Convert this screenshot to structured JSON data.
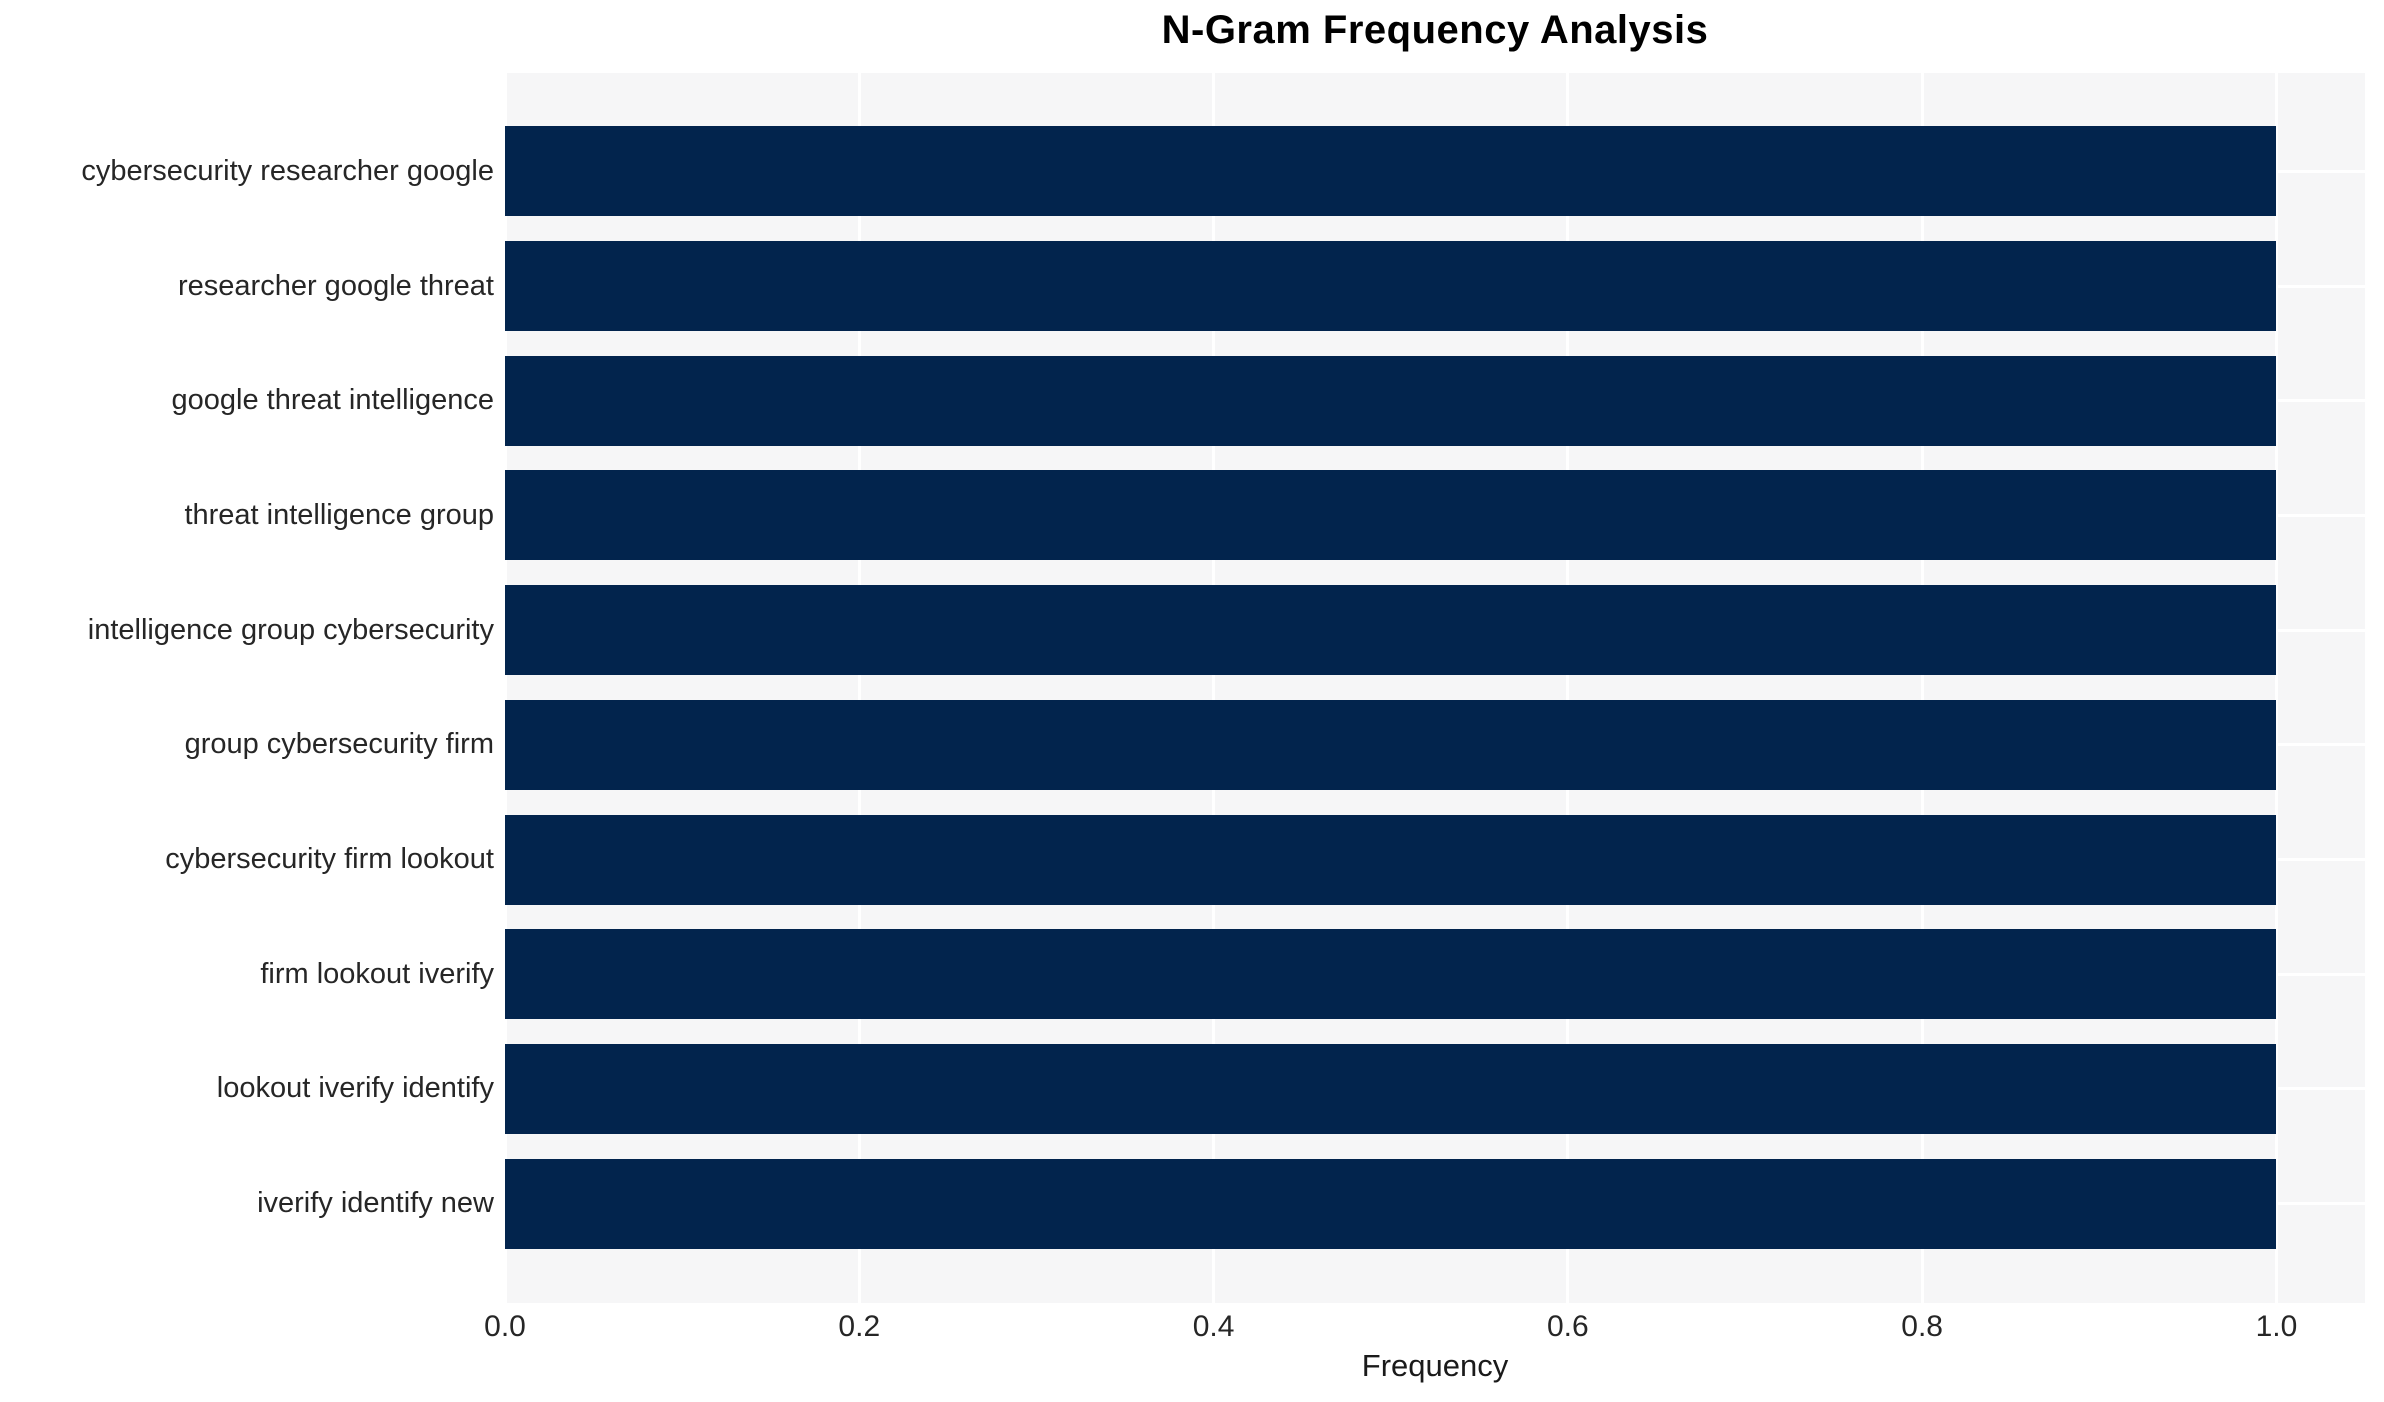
{
  "chart_data": {
    "type": "bar",
    "orientation": "horizontal",
    "title": "N-Gram Frequency Analysis",
    "xlabel": "Frequency",
    "ylabel": "",
    "categories": [
      "cybersecurity researcher google",
      "researcher google threat",
      "google threat intelligence",
      "threat intelligence group",
      "intelligence group cybersecurity",
      "group cybersecurity firm",
      "cybersecurity firm lookout",
      "firm lookout iverify",
      "lookout iverify identify",
      "iverify identify new"
    ],
    "values": [
      1.0,
      1.0,
      1.0,
      1.0,
      1.0,
      1.0,
      1.0,
      1.0,
      1.0,
      1.0
    ],
    "x_ticks": [
      0.0,
      0.2,
      0.4,
      0.6,
      0.8,
      1.0
    ],
    "x_tick_labels": [
      "0.0",
      "0.2",
      "0.4",
      "0.6",
      "0.8",
      "1.0"
    ],
    "xlim": [
      0,
      1.05
    ],
    "grid": true,
    "legend": false,
    "colors": {
      "bar": "#02244d",
      "plot_background": "#f6f6f7",
      "figure_background": "#ffffff",
      "grid_line": "#ffffff",
      "tick_text": "#262626",
      "title_text": "#000000"
    }
  }
}
